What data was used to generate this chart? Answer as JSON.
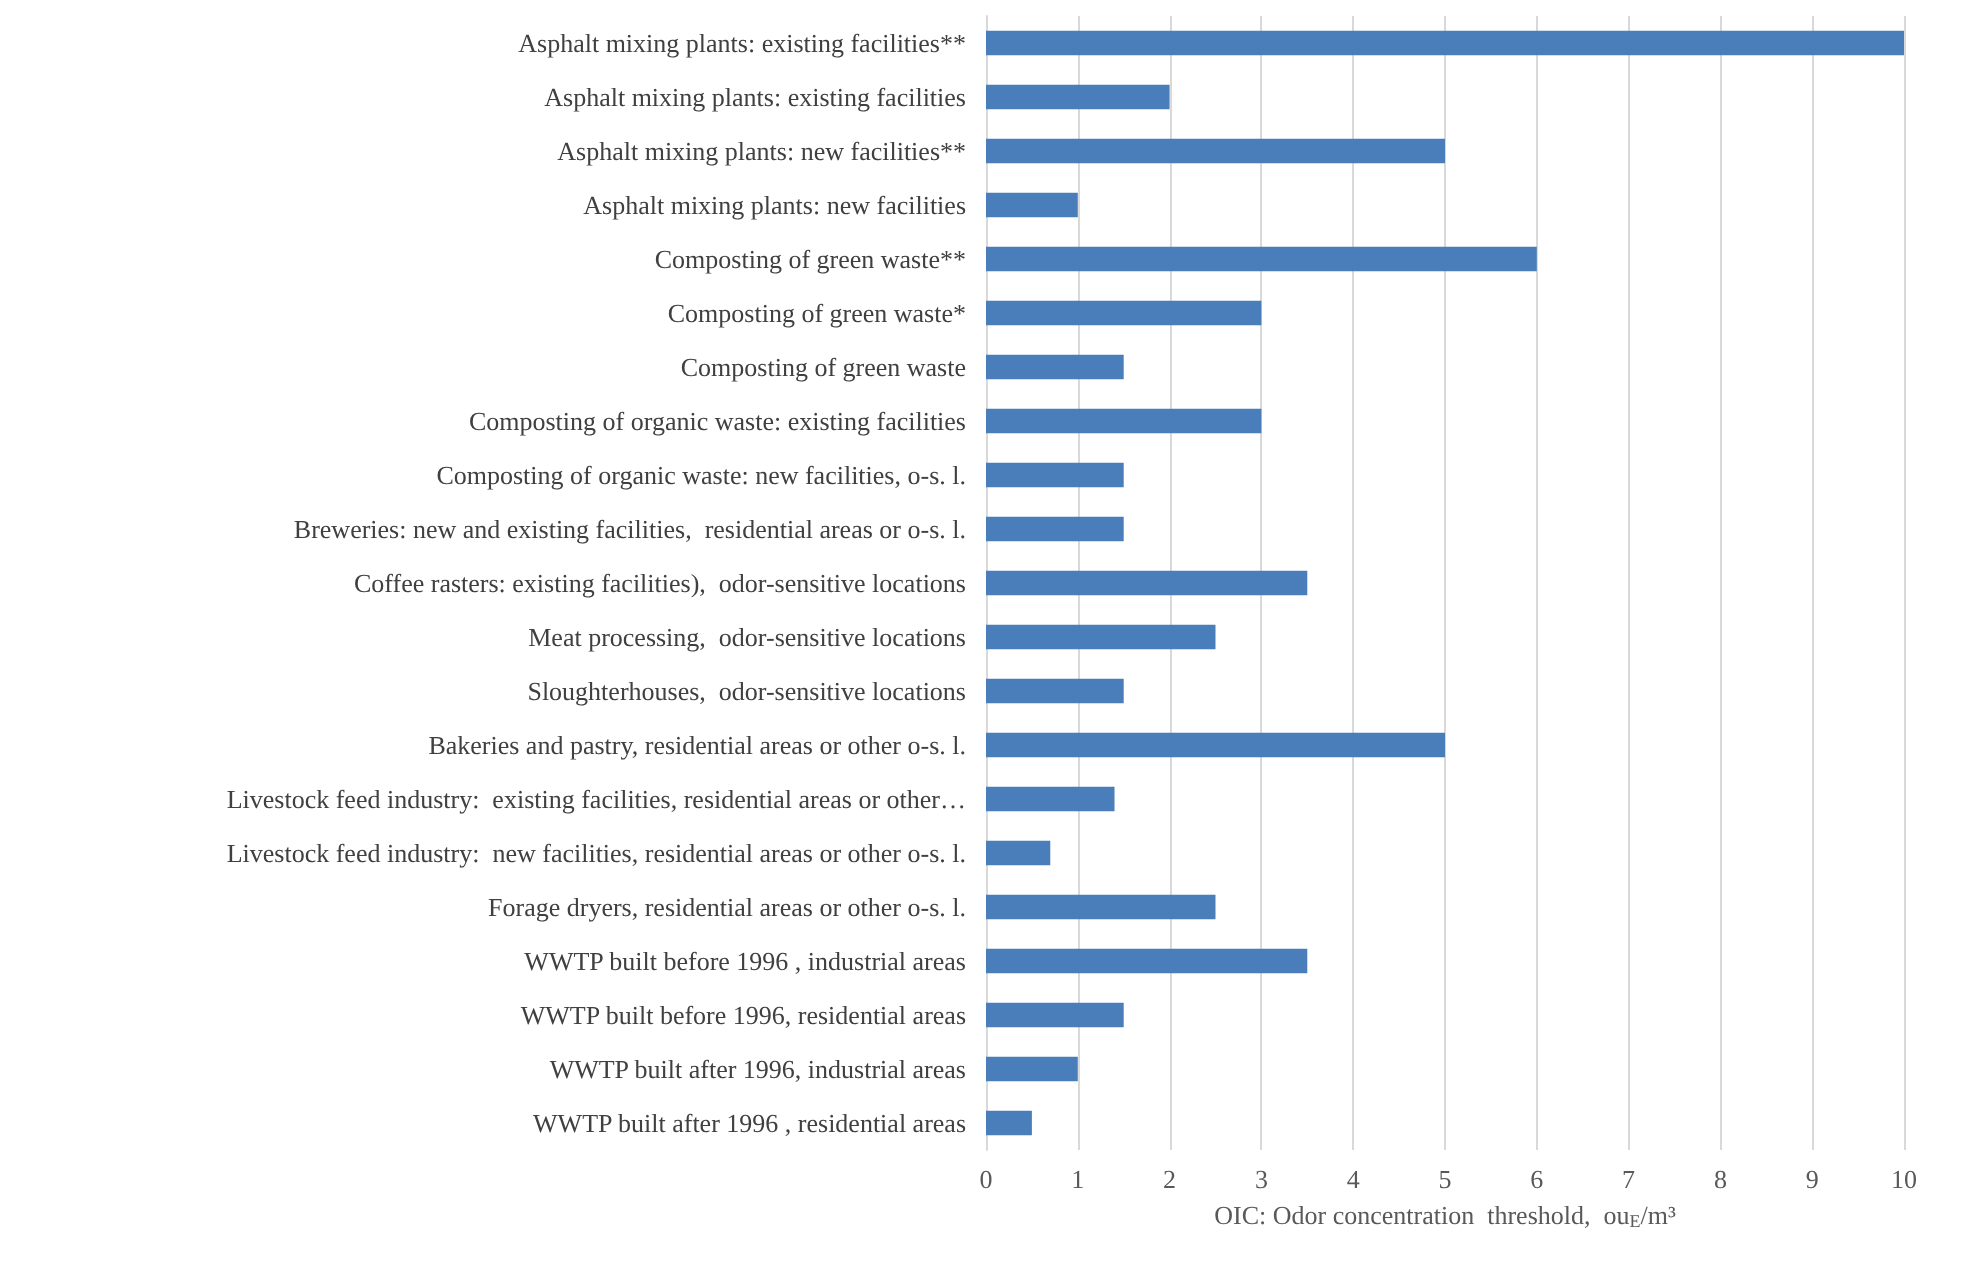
{
  "chart_data": {
    "type": "bar",
    "orientation": "horizontal",
    "categories": [
      "Asphalt mixing plants: existing facilities**",
      "Asphalt mixing plants: existing facilities",
      "Asphalt mixing plants: new facilities**",
      "Asphalt mixing plants: new facilities",
      "Composting of green waste**",
      "Composting of green waste*",
      "Composting of green waste",
      "Composting of organic waste: existing facilities",
      "Composting of organic waste: new facilities, o-s. l.",
      "Breweries: new and existing facilities,  residential areas or o-s. l.",
      "Coffee rasters: existing facilities),  odor-sensitive locations",
      "Meat processing,  odor-sensitive locations",
      "Sloughterhouses,  odor-sensitive locations",
      "Bakeries and pastry, residential areas or other o-s. l.",
      "Livestock feed industry:  existing facilities, residential areas or other…",
      "Livestock feed industry:  new facilities, residential areas or other o-s. l.",
      "Forage dryers, residential areas or other o-s. l.",
      "WWTP built before 1996 , industrial areas",
      "WWTP built before 1996, residential areas",
      "WWTP built after 1996, industrial areas",
      "WWTP built after 1996 , residential areas"
    ],
    "values": [
      10,
      2,
      5,
      1,
      6,
      3,
      1.5,
      3,
      1.5,
      1.5,
      3.5,
      2.5,
      1.5,
      5,
      1.4,
      0.7,
      2.5,
      3.5,
      1.5,
      1,
      0.5
    ],
    "color": "#4a7ebb",
    "xlabel": "OIC: Odor concentration  threshold,  ou$_{E}$/m³",
    "xlim": [
      0,
      10
    ],
    "xticks": [
      0,
      1,
      2,
      3,
      4,
      5,
      6,
      7,
      8,
      9,
      10
    ],
    "grid": "x"
  }
}
